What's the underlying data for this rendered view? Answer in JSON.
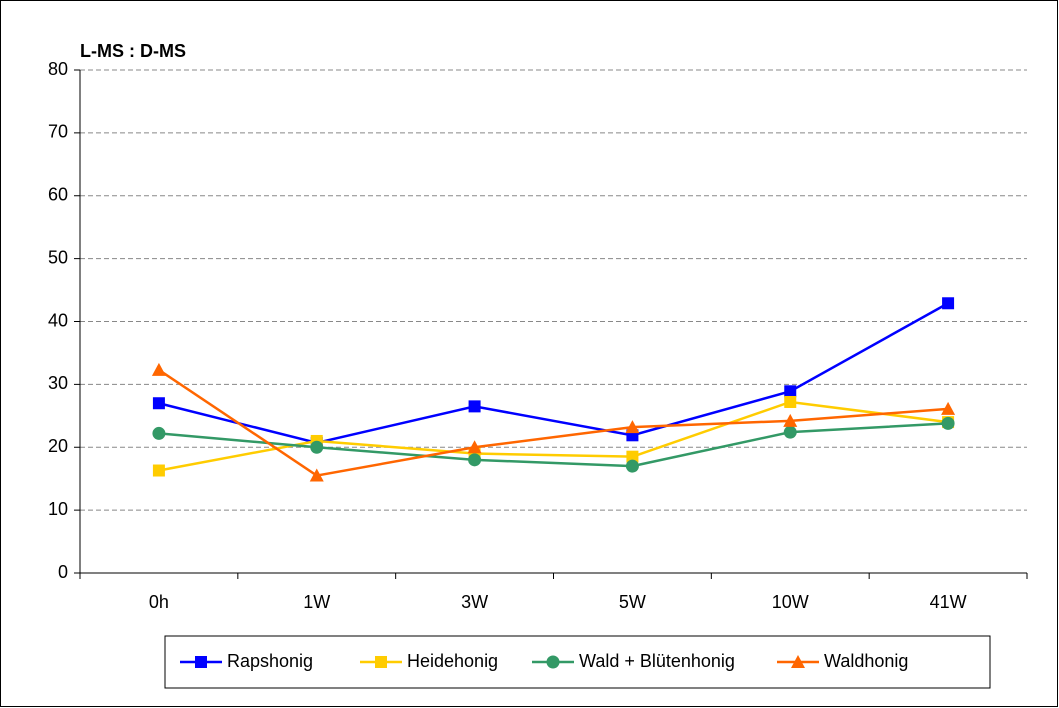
{
  "chart_data": {
    "type": "line",
    "title": "L-MS : D-MS",
    "categories": [
      "0h",
      "1W",
      "3W",
      "5W",
      "10W",
      "41W"
    ],
    "series": [
      {
        "name": "Rapshonig",
        "color": "#0000ff",
        "marker": "square",
        "values": [
          27,
          20.7,
          26.5,
          21.9,
          28.9,
          42.9
        ]
      },
      {
        "name": "Heidehonig",
        "color": "#ffcc00",
        "marker": "square",
        "values": [
          16.3,
          21,
          19,
          18.5,
          27.2,
          24
        ]
      },
      {
        "name": "Wald + Blütenhonig",
        "color": "#339966",
        "marker": "circle",
        "values": [
          22.2,
          20,
          18,
          17,
          22.4,
          23.8
        ]
      },
      {
        "name": "Waldhonig",
        "color": "#ff6600",
        "marker": "triangle",
        "values": [
          32.3,
          15.5,
          20,
          23.2,
          24.2,
          26.1
        ]
      }
    ],
    "ylim": [
      0,
      80
    ],
    "yticks": [
      0,
      10,
      20,
      30,
      40,
      50,
      60,
      70,
      80
    ],
    "grid": true,
    "legend": "bottom"
  }
}
